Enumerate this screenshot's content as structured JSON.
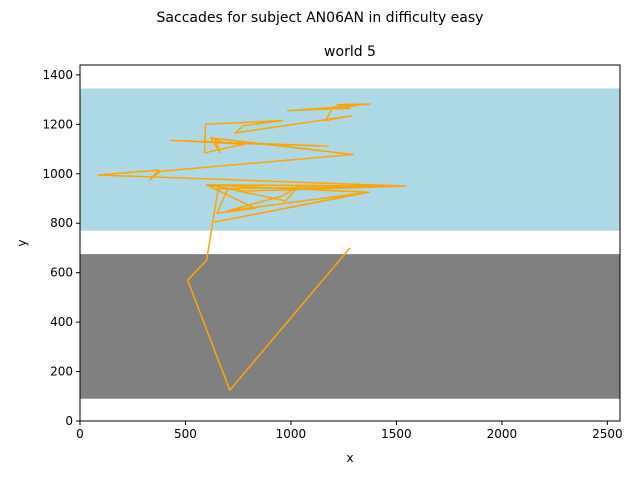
{
  "figure": {
    "suptitle": "Saccades for subject AN06AN in difficulty easy"
  },
  "chart_data": {
    "type": "line",
    "title": "world 5",
    "xlabel": "x",
    "ylabel": "y",
    "xlim": [
      0,
      2560
    ],
    "ylim": [
      0,
      1440
    ],
    "xticks": [
      0,
      500,
      1000,
      1500,
      2000,
      2500
    ],
    "yticks": [
      0,
      200,
      400,
      600,
      800,
      1000,
      1200,
      1400
    ],
    "grid": false,
    "legend": "none",
    "regions": [
      {
        "y_from": 770,
        "y_to": 1345,
        "color": "#add8e6"
      },
      {
        "y_from": 90,
        "y_to": 675,
        "color": "#808080"
      }
    ],
    "series": [
      {
        "color": "#ffa500",
        "points": [
          [
            1280,
            700
          ],
          [
            710,
            125
          ],
          [
            510,
            570
          ],
          [
            600,
            650
          ],
          [
            655,
            940
          ],
          [
            1545,
            950
          ],
          [
            605,
            955
          ],
          [
            1360,
            925
          ],
          [
            640,
            805
          ],
          [
            1370,
            925
          ],
          [
            700,
            850
          ],
          [
            960,
            910
          ],
          [
            1035,
            950
          ],
          [
            975,
            890
          ],
          [
            700,
            940
          ],
          [
            650,
            840
          ],
          [
            830,
            860
          ],
          [
            600,
            955
          ],
          [
            775,
            930
          ],
          [
            1545,
            950
          ],
          [
            85,
            995
          ],
          [
            375,
            1015
          ],
          [
            330,
            975
          ],
          [
            380,
            1010
          ],
          [
            1295,
            1078
          ],
          [
            620,
            1145
          ],
          [
            665,
            1085
          ],
          [
            640,
            1140
          ],
          [
            685,
            1125
          ],
          [
            1175,
            1112
          ],
          [
            430,
            1135
          ],
          [
            780,
            1120
          ],
          [
            590,
            1085
          ],
          [
            595,
            1200
          ],
          [
            960,
            1215
          ],
          [
            775,
            1195
          ],
          [
            735,
            1165
          ],
          [
            1290,
            1235
          ],
          [
            1165,
            1215
          ],
          [
            1200,
            1270
          ],
          [
            1375,
            1282
          ],
          [
            1220,
            1280
          ],
          [
            1280,
            1265
          ],
          [
            985,
            1255
          ],
          [
            1310,
            1275
          ]
        ]
      }
    ]
  }
}
